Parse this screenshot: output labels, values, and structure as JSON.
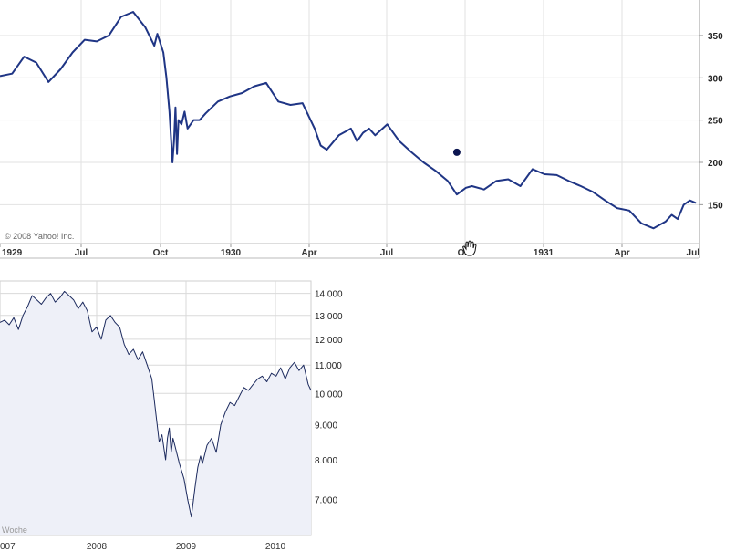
{
  "chart_data": [
    {
      "type": "line",
      "title": "",
      "copyright": "© 2008 Yahoo! Inc.",
      "ylim": [
        104,
        392
      ],
      "y_ticks": [
        150,
        200,
        250,
        300,
        350
      ],
      "y_tick_labels": [
        "150",
        "200",
        "250",
        "300",
        "350"
      ],
      "x_tick_labels": [
        "1929",
        "Jul",
        "Oct",
        "1930",
        "Apr",
        "Jul",
        "Oct",
        "1931",
        "Apr",
        "Jul"
      ],
      "grid": true,
      "series_color": "#1f3585",
      "marker_point": [
        1930.75,
        212
      ],
      "x": [
        1929.24,
        1929.28,
        1929.32,
        1929.36,
        1929.4,
        1929.44,
        1929.48,
        1929.52,
        1929.56,
        1929.6,
        1929.64,
        1929.68,
        1929.72,
        1929.75,
        1929.76,
        1929.78,
        1929.79,
        1929.8,
        1929.81,
        1929.815,
        1929.82,
        1929.825,
        1929.83,
        1929.84,
        1929.85,
        1929.86,
        1929.88,
        1929.9,
        1929.92,
        1929.96,
        1930.0,
        1930.04,
        1930.08,
        1930.12,
        1930.16,
        1930.2,
        1930.24,
        1930.28,
        1930.3,
        1930.32,
        1930.36,
        1930.4,
        1930.42,
        1930.44,
        1930.46,
        1930.48,
        1930.52,
        1930.56,
        1930.6,
        1930.64,
        1930.68,
        1930.72,
        1930.75,
        1930.78,
        1930.8,
        1930.84,
        1930.88,
        1930.92,
        1930.96,
        1931.0,
        1931.04,
        1931.08,
        1931.12,
        1931.16,
        1931.2,
        1931.24,
        1931.28,
        1931.32,
        1931.36,
        1931.4,
        1931.44,
        1931.46,
        1931.48,
        1931.5,
        1931.52,
        1931.54
      ],
      "values": [
        302,
        305,
        325,
        318,
        295,
        310,
        330,
        345,
        343,
        350,
        372,
        378,
        360,
        338,
        352,
        330,
        300,
        260,
        200,
        225,
        265,
        210,
        250,
        245,
        260,
        240,
        250,
        250,
        258,
        272,
        278,
        282,
        290,
        294,
        272,
        268,
        270,
        240,
        220,
        215,
        232,
        240,
        225,
        235,
        240,
        232,
        245,
        225,
        212,
        200,
        190,
        178,
        162,
        170,
        172,
        168,
        178,
        180,
        172,
        192,
        186,
        185,
        178,
        172,
        165,
        155,
        146,
        143,
        128,
        122,
        130,
        138,
        133,
        150,
        155,
        152
      ]
    },
    {
      "type": "line",
      "title": "",
      "legend_text": "Woche",
      "y_scale": "log",
      "ylim": [
        6200,
        14600
      ],
      "y_ticks": [
        7000,
        8000,
        9000,
        10000,
        11000,
        12000,
        13000,
        14000
      ],
      "y_tick_labels": [
        "7.000",
        "8.000",
        "9.000",
        "10.000",
        "11.000",
        "12.000",
        "13.000",
        "14.000"
      ],
      "x_tick_labels": [
        "007",
        "2008",
        "2009",
        "2010"
      ],
      "grid": true,
      "area_fill": true,
      "series_color": "#1c2a5e",
      "x": [
        2007.0,
        2007.05,
        2007.1,
        2007.15,
        2007.2,
        2007.25,
        2007.3,
        2007.35,
        2007.4,
        2007.45,
        2007.5,
        2007.55,
        2007.6,
        2007.65,
        2007.7,
        2007.75,
        2007.8,
        2007.85,
        2007.9,
        2007.95,
        2008.0,
        2008.05,
        2008.1,
        2008.15,
        2008.2,
        2008.25,
        2008.3,
        2008.35,
        2008.4,
        2008.45,
        2008.5,
        2008.55,
        2008.6,
        2008.65,
        2008.7,
        2008.73,
        2008.76,
        2008.8,
        2008.82,
        2008.84,
        2008.86,
        2008.88,
        2008.9,
        2008.95,
        2009.0,
        2009.04,
        2009.08,
        2009.12,
        2009.15,
        2009.18,
        2009.2,
        2009.25,
        2009.3,
        2009.35,
        2009.4,
        2009.45,
        2009.5,
        2009.55,
        2009.6,
        2009.65,
        2009.7,
        2009.75,
        2009.8,
        2009.85,
        2009.9,
        2009.95,
        2010.0,
        2010.05,
        2010.1,
        2010.15,
        2010.2,
        2010.25,
        2010.3,
        2010.35,
        2010.38
      ],
      "values": [
        12700,
        12800,
        12600,
        12900,
        12400,
        13000,
        13400,
        13900,
        13700,
        13500,
        13800,
        14000,
        13600,
        13800,
        14100,
        13900,
        13700,
        13300,
        13600,
        13200,
        12300,
        12500,
        12000,
        12800,
        13000,
        12700,
        12500,
        11800,
        11400,
        11600,
        11200,
        11500,
        11000,
        10500,
        9200,
        8500,
        8700,
        8000,
        8600,
        8900,
        8200,
        8600,
        8400,
        7900,
        7500,
        7000,
        6600,
        7300,
        7800,
        8100,
        7900,
        8400,
        8600,
        8200,
        9000,
        9400,
        9700,
        9600,
        9900,
        10200,
        10100,
        10300,
        10500,
        10600,
        10400,
        10700,
        10600,
        10900,
        10500,
        10900,
        11100,
        10800,
        11000,
        10300,
        10100
      ]
    }
  ]
}
